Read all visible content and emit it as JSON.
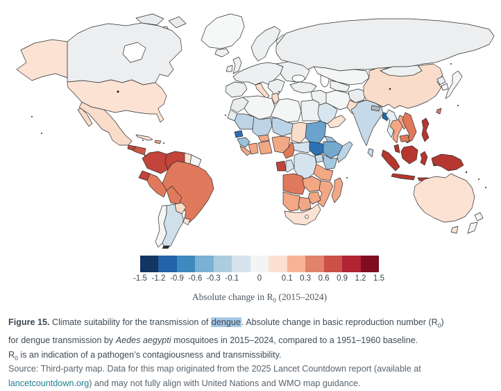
{
  "figure": {
    "legend": {
      "ticks": [
        "-1.5",
        "-1.2",
        "-0.9",
        "-0.6",
        "-0.3",
        "-0.1",
        "0",
        "0.1",
        "0.3",
        "0.6",
        "0.9",
        "1.2",
        "1.5"
      ],
      "colors": [
        "#14355f",
        "#2264a8",
        "#3d8abf",
        "#7ab0d3",
        "#acccdf",
        "#d5e4ec",
        "#f3f5f4",
        "#fbe0d2",
        "#f6b396",
        "#e0836a",
        "#cb5046",
        "#b12433",
        "#7f0d22"
      ],
      "label_prefix": "Absolute change in R",
      "label_sub": "0",
      "label_suffix": " (2015–2024)"
    },
    "caption": {
      "figure_label": "Figure 15.",
      "line1_a": " Climate suitability for the transmission of ",
      "highlight": "dengue",
      "line1_b": ". Absolute change in basic reproduction number (R",
      "line1_sub": "0",
      "line1_c": ")",
      "line2_a": "for dengue transmission by ",
      "line2_italic": "Aedes aegypti",
      "line2_b": " mosquitoes in 2015–2024, compared to a 1951–1960 baseline.",
      "line3_a": "R",
      "line3_sub": "0",
      "line3_b": " is an indication of a pathogen’s contagiousness and transmissibility."
    },
    "source": {
      "line1": "Source: Third-party map. Data for this map originated from the 2025 Lancet Countdown report (available at",
      "link": "lancetcountdown.org",
      "line2_rest": ") and may not fully align with United Nations and WMO map guidance."
    }
  },
  "map": {
    "border_color": "#2d2d2d",
    "no_data_color": "#b3b3b3",
    "regions": {
      "alaska": {
        "color": "#fbe2d3",
        "value": "0 to +0.1"
      },
      "canada": {
        "color": "#eceef0",
        "value": "-0.1 to +0.1"
      },
      "arctic_islands": {
        "color": "#e8ebed",
        "value": "-0.1 to +0.1"
      },
      "greenland": {
        "color": "#f6f8f8",
        "value": "-0.1 to +0.1"
      },
      "usa": {
        "color": "#fbe2d3",
        "value": "0 to +0.1"
      },
      "mexico": {
        "color": "#f9dcc9",
        "value": "0 to +0.1"
      },
      "guatemala": {
        "color": "#c2443a",
        "value": "+0.6 to +0.9"
      },
      "honduras_nicaragua": {
        "color": "#cc5a45",
        "value": "+0.6 to +0.9"
      },
      "costa_rica_panama": {
        "color": "#e0795c",
        "value": "+0.3 to +0.6"
      },
      "cuba": {
        "color": "#fbe2d3",
        "value": "0 to +0.1"
      },
      "hispaniola": {
        "color": "#f2a785",
        "value": "+0.1 to +0.3"
      },
      "colombia": {
        "color": "#c2443a",
        "value": "+0.6 to +0.9"
      },
      "venezuela": {
        "color": "#c2443a",
        "value": "+0.6 to +0.9"
      },
      "guyana": {
        "color": "#fbe2d3",
        "value": "0 to +0.1"
      },
      "suriname_guiana": {
        "color": "#f4f6f5",
        "value": "-0.1 to +0.1"
      },
      "ecuador": {
        "color": "#c2443a",
        "value": "+0.6 to +0.9"
      },
      "peru": {
        "color": "#e0795c",
        "value": "+0.3 to +0.6"
      },
      "brazil": {
        "color": "#e0795c",
        "value": "+0.3 to +0.6"
      },
      "bolivia": {
        "color": "#e0795c",
        "value": "+0.3 to +0.6"
      },
      "paraguay": {
        "color": "#f9dcc9",
        "value": "0 to +0.1"
      },
      "uruguay": {
        "color": "#fbe2d3",
        "value": "0 to +0.1"
      },
      "argentina": {
        "color": "#cfe0ea",
        "value": "-0.3 to -0.1"
      },
      "chile": {
        "color": "#f4f6f5",
        "value": "-0.1 to +0.1"
      },
      "europe": {
        "color": "#edf0f1",
        "value": "-0.1 to +0.1"
      },
      "italy": {
        "color": "#f9dcc9",
        "value": "0 to +0.1"
      },
      "russia": {
        "color": "#eceef0",
        "value": "-0.1 to +0.1"
      },
      "kazakhstan": {
        "color": "#f4f6f5",
        "value": "-0.1 to +0.1"
      },
      "central_asia": {
        "color": "#eef1f2",
        "value": "-0.1 to +0.1"
      },
      "turkey": {
        "color": "#eef1f2",
        "value": "-0.1 to +0.1"
      },
      "syria_iraq": {
        "color": "#eef1f2",
        "value": "-0.1 to +0.1"
      },
      "iran": {
        "color": "#f4f6f5",
        "value": "-0.1 to +0.1"
      },
      "afghanistan": {
        "color": "#e9edef",
        "value": "-0.1 to +0.1"
      },
      "pakistan": {
        "color": "#f9dcc9",
        "value": "0 to +0.1"
      },
      "saudi_arabia": {
        "color": "#d8e5ef",
        "value": "-0.3 to -0.1"
      },
      "yemen_oman": {
        "color": "#fbe2d3",
        "value": "0 to +0.1"
      },
      "morocco": {
        "color": "#e9edef",
        "value": "-0.1 to +0.1"
      },
      "western_sahara": {
        "color": "#e9edef",
        "value": "-0.1 to +0.1"
      },
      "algeria": {
        "color": "#f4f6f5",
        "value": "-0.1 to +0.1"
      },
      "tunisia": {
        "color": "#f9dcc9",
        "value": "0 to +0.1"
      },
      "libya": {
        "color": "#f4f6f5",
        "value": "-0.1 to +0.1"
      },
      "egypt": {
        "color": "#eef1f2",
        "value": "-0.1 to +0.1"
      },
      "mauritania": {
        "color": "#bdd4e6",
        "value": "-0.3 to -0.1"
      },
      "mali": {
        "color": "#bdd4e6",
        "value": "-0.3 to -0.1"
      },
      "niger": {
        "color": "#bdd4e6",
        "value": "-0.3 to -0.1"
      },
      "chad": {
        "color": "#f9dcc9",
        "value": "0 to +0.1"
      },
      "sudan": {
        "color": "#6aa3cb",
        "value": "-0.6 to -0.3"
      },
      "senegal": {
        "color": "#2e6db0",
        "value": "-0.9 to -0.6"
      },
      "guinea": {
        "color": "#9cc3dc",
        "value": "-0.6 to -0.3"
      },
      "sierra_leone_liberia": {
        "color": "#f2a785",
        "value": "+0.1 to +0.3"
      },
      "cote_divoire": {
        "color": "#f2a785",
        "value": "+0.1 to +0.3"
      },
      "burkina_faso": {
        "color": "#f2a785",
        "value": "+0.1 to +0.3"
      },
      "ghana_togo_benin": {
        "color": "#f2a785",
        "value": "+0.1 to +0.3"
      },
      "nigeria": {
        "color": "#f2a785",
        "value": "+0.1 to +0.3"
      },
      "cameroon": {
        "color": "#e0795c",
        "value": "+0.3 to +0.6"
      },
      "central_african_republic": {
        "color": "#d5e3ee",
        "value": "-0.3 to -0.1"
      },
      "south_sudan": {
        "color": "#2f72b3",
        "value": "-0.9 to -0.6"
      },
      "ethiopia": {
        "color": "#74a9ce",
        "value": "-0.6 to -0.3"
      },
      "eritrea": {
        "color": "#9cc3dc",
        "value": "-0.6 to -0.3"
      },
      "somalia": {
        "color": "#bdd4e6",
        "value": "-0.3 to -0.1"
      },
      "uganda": {
        "color": "#c9dbe9",
        "value": "-0.3 to -0.1"
      },
      "kenya": {
        "color": "#a5c9de",
        "value": "-0.6 to -0.3"
      },
      "gabon": {
        "color": "#c2443a",
        "value": "+0.6 to +0.9"
      },
      "congo": {
        "color": "#d5e3ee",
        "value": "-0.3 to -0.1"
      },
      "drc": {
        "color": "#d5e3ee",
        "value": "-0.3 to -0.1"
      },
      "tanzania": {
        "color": "#f2a785",
        "value": "+0.1 to +0.3"
      },
      "angola": {
        "color": "#e0795c",
        "value": "+0.3 to +0.6"
      },
      "zambia": {
        "color": "#f2a785",
        "value": "+0.1 to +0.3"
      },
      "mozambique": {
        "color": "#f2a785",
        "value": "+0.1 to +0.3"
      },
      "zimbabwe": {
        "color": "#f2a785",
        "value": "+0.1 to +0.3"
      },
      "namibia": {
        "color": "#f2a785",
        "value": "+0.1 to +0.3"
      },
      "botswana": {
        "color": "#f2a785",
        "value": "+0.1 to +0.3"
      },
      "south_africa": {
        "color": "#fbe2d3",
        "value": "0 to +0.1"
      },
      "madagascar": {
        "color": "#f2a785",
        "value": "+0.1 to +0.3"
      },
      "india": {
        "color": "#c5d9e8",
        "value": "-0.3 to -0.1"
      },
      "nepal": {
        "color": "#b3b3b3",
        "value": "no data"
      },
      "bangladesh": {
        "color": "#2166ac",
        "value": "-0.9 to -0.6"
      },
      "sri_lanka": {
        "color": "#c5d9e8",
        "value": "-0.3 to -0.1"
      },
      "myanmar": {
        "color": "#e4edf2",
        "value": "-0.1 to 0"
      },
      "china": {
        "color": "#f9dcc9",
        "value": "0 to +0.1"
      },
      "mongolia": {
        "color": "#eef1f2",
        "value": "-0.1 to +0.1"
      },
      "north_korea": {
        "color": "#e9edef",
        "value": "-0.1 to +0.1"
      },
      "south_korea": {
        "color": "#f4f6f5",
        "value": "-0.1 to +0.1"
      },
      "japan": {
        "color": "#f4f6f5",
        "value": "-0.1 to +0.1"
      },
      "taiwan": {
        "color": "#e0795c",
        "value": "+0.3 to +0.6"
      },
      "thailand": {
        "color": "#f2a785",
        "value": "+0.1 to +0.3"
      },
      "laos": {
        "color": "#f2a785",
        "value": "+0.1 to +0.3"
      },
      "vietnam": {
        "color": "#e0795c",
        "value": "+0.3 to +0.6"
      },
      "cambodia": {
        "color": "#e0795c",
        "value": "+0.3 to +0.6"
      },
      "malaysia_indonesia": {
        "color": "#b5372f",
        "value": "+0.9 to +1.2"
      },
      "philippines": {
        "color": "#b5372f",
        "value": "+0.9 to +1.2"
      },
      "papua_new_guinea": {
        "color": "#b5372f",
        "value": "+0.9 to +1.2"
      },
      "australia": {
        "color": "#fbe2d3",
        "value": "0 to +0.1"
      },
      "new_zealand": {
        "color": "#f4f6f5",
        "value": "-0.1 to +0.1"
      }
    }
  },
  "chart_data": {
    "type": "heatmap",
    "subtype": "choropleth_world_map",
    "title": "Climate suitability for the transmission of dengue",
    "measure": "Absolute change in R0 (2015–2024) vs 1951–1960 baseline",
    "legend_bins": [
      "-1.5",
      "-1.2",
      "-0.9",
      "-0.6",
      "-0.3",
      "-0.1",
      "0",
      "0.1",
      "0.3",
      "0.6",
      "0.9",
      "1.2",
      "1.5"
    ],
    "legend_colors": [
      "#14355f",
      "#2264a8",
      "#3d8abf",
      "#7ab0d3",
      "#acccdf",
      "#d5e4ec",
      "#f3f5f4",
      "#fbe0d2",
      "#f6b396",
      "#e0836a",
      "#cb5046",
      "#b12433",
      "#7f0d22"
    ],
    "legend_position": "bottom-center",
    "notable_values": [
      {
        "region": "Indonesia / Malaysia / Philippines / Papua New Guinea",
        "value": "+0.9 to +1.2"
      },
      {
        "region": "Colombia / Venezuela / Ecuador / Guatemala / Gabon",
        "value": "+0.6 to +0.9"
      },
      {
        "region": "Brazil / Peru / Bolivia / Angola / Vietnam / Cambodia",
        "value": "+0.3 to +0.6"
      },
      {
        "region": "West & Southern Africa belt / Thailand / Madagascar",
        "value": "+0.1 to +0.3"
      },
      {
        "region": "USA / Mexico / China / Australia / South Africa / Pakistan",
        "value": "0 to +0.1"
      },
      {
        "region": "Canada / Europe / Russia / Middle East",
        "value": "-0.1 to +0.1"
      },
      {
        "region": "India / Sahel (Mauritania, Mali, Niger) / Argentina / Saudi Arabia",
        "value": "-0.3 to -0.1"
      },
      {
        "region": "Sudan / Ethiopia / Kenya",
        "value": "-0.6 to -0.3"
      },
      {
        "region": "South Sudan / Senegal / Bangladesh",
        "value": "-0.9 to -0.6"
      },
      {
        "region": "Nepal",
        "value": "no data"
      }
    ]
  }
}
